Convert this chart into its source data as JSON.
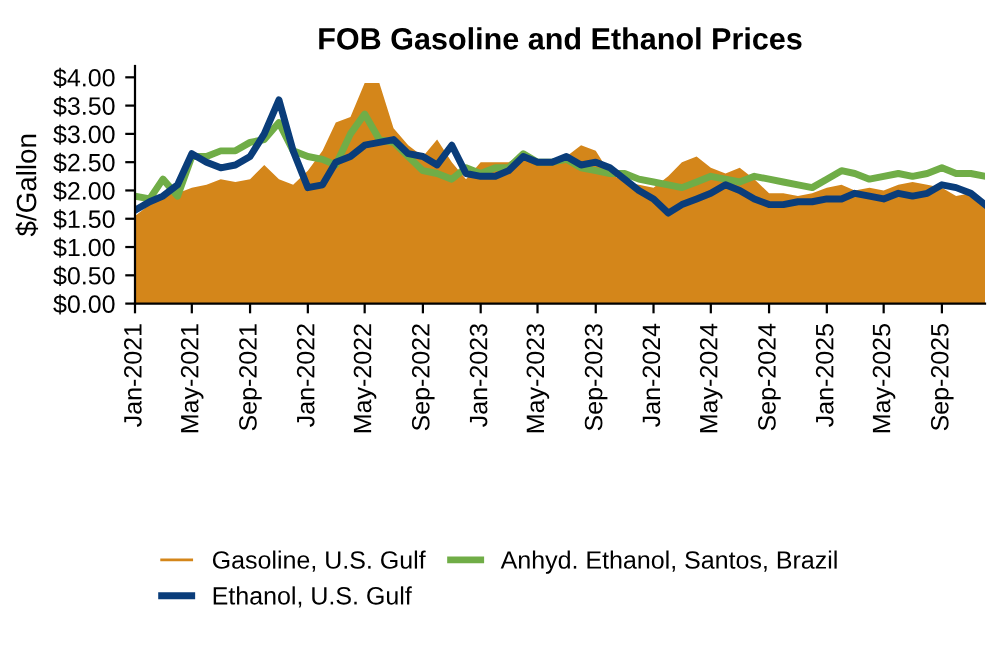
{
  "chart_data": {
    "type": "area",
    "title": "FOB Gasoline and Ethanol Prices",
    "ylabel": "$/Gallon",
    "x": [
      "2021-01",
      "2021-02",
      "2021-03",
      "2021-04",
      "2021-05",
      "2021-06",
      "2021-07",
      "2021-08",
      "2021-09",
      "2021-10",
      "2021-11",
      "2021-12",
      "2022-01",
      "2022-02",
      "2022-03",
      "2022-04",
      "2022-05",
      "2022-06",
      "2022-07",
      "2022-08",
      "2022-09",
      "2022-10",
      "2022-11",
      "2022-12",
      "2023-01",
      "2023-02",
      "2023-03",
      "2023-04",
      "2023-05",
      "2023-06",
      "2023-07",
      "2023-08",
      "2023-09",
      "2023-10",
      "2023-11",
      "2023-12",
      "2024-01",
      "2024-02",
      "2024-03",
      "2024-04",
      "2024-05",
      "2024-06",
      "2024-07",
      "2024-08",
      "2024-09",
      "2024-10",
      "2024-11",
      "2024-12",
      "2025-01",
      "2025-02",
      "2025-03",
      "2025-04",
      "2025-05",
      "2025-06",
      "2025-07",
      "2025-08",
      "2025-09",
      "2025-10",
      "2025-11",
      "2025-12"
    ],
    "series": [
      {
        "name": "Gasoline, U.S. Gulf",
        "color": "#d4861a",
        "values": [
          1.55,
          1.75,
          1.95,
          1.95,
          2.05,
          2.1,
          2.2,
          2.15,
          2.2,
          2.45,
          2.2,
          2.1,
          2.35,
          2.7,
          3.2,
          3.3,
          3.9,
          3.9,
          3.1,
          2.8,
          2.6,
          2.9,
          2.5,
          2.2,
          2.5,
          2.5,
          2.5,
          2.65,
          2.45,
          2.5,
          2.6,
          2.8,
          2.7,
          2.3,
          2.15,
          2.1,
          2.05,
          2.25,
          2.5,
          2.6,
          2.4,
          2.3,
          2.4,
          2.2,
          1.95,
          1.95,
          1.9,
          1.95,
          2.05,
          2.1,
          2.0,
          2.05,
          2.0,
          2.1,
          2.15,
          2.1,
          2.05,
          1.9,
          1.95,
          1.8
        ]
      },
      {
        "name": "Anhyd. Ethanol, Santos, Brazil",
        "type": "line",
        "color": "#70ad47",
        "values": [
          1.9,
          1.85,
          2.2,
          1.9,
          2.6,
          2.6,
          2.7,
          2.7,
          2.85,
          2.9,
          3.2,
          2.7,
          2.6,
          2.55,
          2.45,
          3.0,
          3.35,
          2.9,
          2.85,
          2.6,
          2.35,
          2.3,
          2.2,
          2.4,
          2.3,
          2.4,
          2.4,
          2.65,
          2.5,
          2.5,
          2.55,
          2.4,
          2.35,
          2.3,
          2.3,
          2.2,
          2.15,
          2.1,
          2.05,
          2.15,
          2.25,
          2.2,
          2.15,
          2.25,
          2.2,
          2.15,
          2.1,
          2.05,
          2.2,
          2.35,
          2.3,
          2.2,
          2.25,
          2.3,
          2.25,
          2.3,
          2.4,
          2.3,
          2.3,
          2.25
        ]
      },
      {
        "name": "Ethanol, U.S. Gulf",
        "type": "line",
        "color": "#0a3d7a",
        "values": [
          1.65,
          1.8,
          1.9,
          2.1,
          2.65,
          2.5,
          2.4,
          2.45,
          2.6,
          3.0,
          3.6,
          2.7,
          2.05,
          2.1,
          2.5,
          2.6,
          2.8,
          2.85,
          2.9,
          2.65,
          2.6,
          2.45,
          2.8,
          2.3,
          2.25,
          2.25,
          2.35,
          2.6,
          2.5,
          2.5,
          2.6,
          2.45,
          2.5,
          2.4,
          2.2,
          2.0,
          1.85,
          1.6,
          1.75,
          1.85,
          1.95,
          2.1,
          2.0,
          1.85,
          1.75,
          1.75,
          1.8,
          1.8,
          1.85,
          1.85,
          1.95,
          1.9,
          1.85,
          1.95,
          1.9,
          1.95,
          2.1,
          2.05,
          1.95,
          1.75
        ]
      }
    ],
    "xlim": [
      "2021-01",
      "2025-12"
    ],
    "xticks": [
      {
        "value": "2021-01",
        "label": "Jan-2021"
      },
      {
        "value": "2021-05",
        "label": "May-2021"
      },
      {
        "value": "2021-09",
        "label": "Sep-2021"
      },
      {
        "value": "2022-01",
        "label": "Jan-2022"
      },
      {
        "value": "2022-05",
        "label": "May-2022"
      },
      {
        "value": "2022-09",
        "label": "Sep-2022"
      },
      {
        "value": "2023-01",
        "label": "Jan-2023"
      },
      {
        "value": "2023-05",
        "label": "May-2023"
      },
      {
        "value": "2023-09",
        "label": "Sep-2023"
      },
      {
        "value": "2024-01",
        "label": "Jan-2024"
      },
      {
        "value": "2024-05",
        "label": "May-2024"
      },
      {
        "value": "2024-09",
        "label": "Sep-2024"
      },
      {
        "value": "2025-01",
        "label": "Jan-2025"
      },
      {
        "value": "2025-05",
        "label": "May-2025"
      },
      {
        "value": "2025-09",
        "label": "Sep-2025"
      }
    ],
    "ylim": [
      0,
      4.2
    ],
    "yticks": [
      {
        "value": 0,
        "label": "$0.00"
      },
      {
        "value": 0.5,
        "label": "$0.50"
      },
      {
        "value": 1,
        "label": "$1.00"
      },
      {
        "value": 1.5,
        "label": "$1.50"
      },
      {
        "value": 2,
        "label": "$2.00"
      },
      {
        "value": 2.5,
        "label": "$2.50"
      },
      {
        "value": 3,
        "label": "$3.00"
      },
      {
        "value": 3.5,
        "label": "$3.50"
      },
      {
        "value": 4,
        "label": "$4.00"
      }
    ],
    "legend": "bottom",
    "grid": false
  }
}
